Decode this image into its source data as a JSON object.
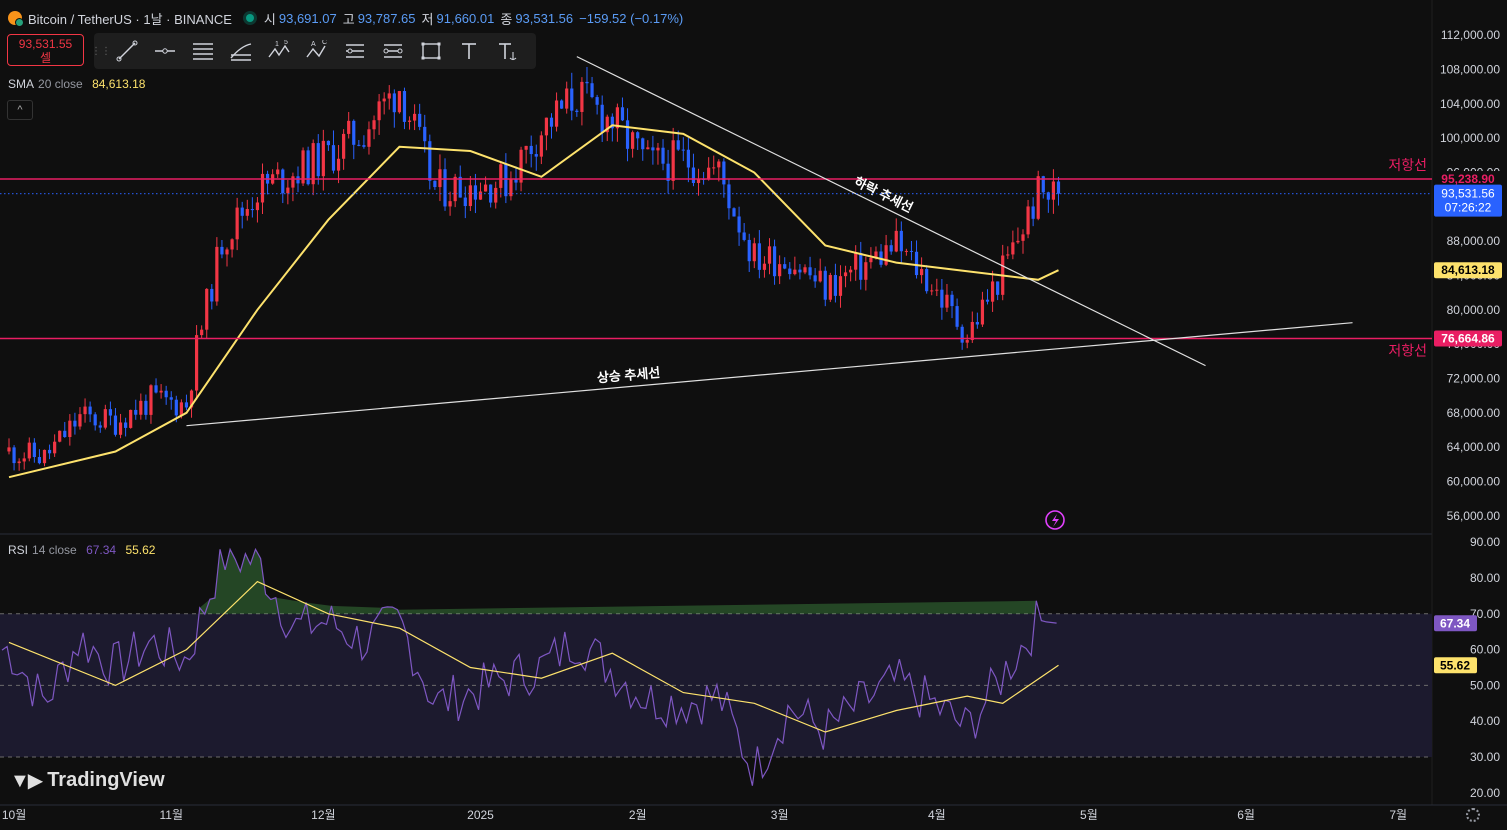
{
  "header": {
    "symbol": "Bitcoin / TetherUS · 1날 · BINANCE",
    "open_label": "시",
    "open": "93,691.07",
    "high_label": "고",
    "high": "93,787.65",
    "low_label": "저",
    "low": "91,660.01",
    "close_label": "종",
    "close": "93,531.56",
    "change": "−159.52 (−0.17%)"
  },
  "sell_box": {
    "price": "93,531.55",
    "label": "셀"
  },
  "toolbar": {
    "icons": [
      "drag-handle-icon",
      "trend-line-icon",
      "horizontal-ray-icon",
      "parallel-channel-icon",
      "fib-retracement-icon",
      "elliott-wave-icon",
      "abcd-pattern-icon",
      "date-range-icon",
      "price-range-icon",
      "rectangle-icon",
      "text-icon",
      "anchored-text-icon"
    ],
    "wave_labels": [
      "1",
      "5"
    ],
    "abcd_labels": [
      "A",
      "C"
    ]
  },
  "collapse_label": "^",
  "logo_text": "TradingView",
  "colors": {
    "up": "#f23645",
    "down": "#2962ff",
    "sma": "#fde26c",
    "rsi": "#7e57c2",
    "resistance": "#e91e63",
    "bg": "#0f0f0f",
    "last_price": "#2962ff"
  },
  "chart_data": [
    {
      "type": "candlestick",
      "x_axis_labels": [
        "10월",
        "11월",
        "12월",
        "2025",
        "2월",
        "3월",
        "4월",
        "5월",
        "6월",
        "7월"
      ],
      "y_axis_labels": [
        "112,000.00",
        "108,000.00",
        "104,000.00",
        "100,000.00",
        "96,000.00",
        "92,000.00",
        "88,000.00",
        "84,000.00",
        "80,000.00",
        "76,000.00",
        "72,000.00",
        "68,000.00",
        "64,000.00",
        "60,000.00",
        "56,000.00"
      ],
      "ylim": [
        54000,
        114000
      ],
      "indicator": {
        "name": "SMA",
        "params": "20 close",
        "value": "84,613.18"
      },
      "price_tags": {
        "resistance_upper": "95,238.90",
        "last_price": "93,531.56",
        "countdown": "07:26:22",
        "sma": "84,613.18",
        "support_lower": "76,664.86"
      },
      "horizontal_lines": [
        {
          "value": 95238.9,
          "label": "저항선"
        },
        {
          "value": 76664.86,
          "label": "저항선"
        }
      ],
      "trendlines": [
        {
          "label": "하락 추세선",
          "from": {
            "date": "2025-01-20",
            "price": 109500
          },
          "to": {
            "date": "2025-05-24",
            "price": 73500
          }
        },
        {
          "label": "상승 추세선",
          "from": {
            "date": "2024-11-04",
            "price": 66500
          },
          "to": {
            "date": "2025-06-22",
            "price": 78500
          }
        }
      ],
      "close_path": [
        {
          "date": "2024-09-30",
          "close": 63500
        },
        {
          "date": "2024-10-07",
          "close": 62800
        },
        {
          "date": "2024-10-14",
          "close": 67500
        },
        {
          "date": "2024-10-21",
          "close": 67000
        },
        {
          "date": "2024-10-28",
          "close": 69500
        },
        {
          "date": "2024-11-04",
          "close": 69000
        },
        {
          "date": "2024-11-06",
          "close": 75500
        },
        {
          "date": "2024-11-11",
          "close": 88000
        },
        {
          "date": "2024-11-18",
          "close": 94000
        },
        {
          "date": "2024-11-25",
          "close": 96000
        },
        {
          "date": "2024-12-02",
          "close": 98000
        },
        {
          "date": "2024-12-09",
          "close": 101000
        },
        {
          "date": "2024-12-16",
          "close": 106000
        },
        {
          "date": "2024-12-23",
          "close": 94000
        },
        {
          "date": "2024-12-30",
          "close": 94500
        },
        {
          "date": "2025-01-06",
          "close": 95000
        },
        {
          "date": "2025-01-13",
          "close": 101000
        },
        {
          "date": "2025-01-20",
          "close": 105000
        },
        {
          "date": "2025-01-27",
          "close": 102000
        },
        {
          "date": "2025-02-03",
          "close": 97000
        },
        {
          "date": "2025-02-10",
          "close": 97500
        },
        {
          "date": "2025-02-17",
          "close": 96000
        },
        {
          "date": "2025-02-24",
          "close": 86000
        },
        {
          "date": "2025-03-03",
          "close": 86000
        },
        {
          "date": "2025-03-10",
          "close": 82500
        },
        {
          "date": "2025-03-17",
          "close": 85000
        },
        {
          "date": "2025-03-24",
          "close": 87500
        },
        {
          "date": "2025-03-31",
          "close": 83000
        },
        {
          "date": "2025-04-07",
          "close": 77000
        },
        {
          "date": "2025-04-14",
          "close": 84500
        },
        {
          "date": "2025-04-21",
          "close": 93500
        },
        {
          "date": "2025-04-25",
          "close": 93531.56
        }
      ],
      "sma_path": [
        {
          "date": "2024-09-30",
          "value": 60500
        },
        {
          "date": "2024-10-21",
          "value": 63500
        },
        {
          "date": "2024-11-04",
          "value": 68000
        },
        {
          "date": "2024-11-18",
          "value": 80000
        },
        {
          "date": "2024-12-02",
          "value": 90500
        },
        {
          "date": "2024-12-16",
          "value": 99000
        },
        {
          "date": "2024-12-30",
          "value": 98500
        },
        {
          "date": "2025-01-13",
          "value": 95500
        },
        {
          "date": "2025-01-27",
          "value": 101500
        },
        {
          "date": "2025-02-10",
          "value": 100500
        },
        {
          "date": "2025-02-24",
          "value": 96000
        },
        {
          "date": "2025-03-10",
          "value": 87500
        },
        {
          "date": "2025-03-24",
          "value": 85500
        },
        {
          "date": "2025-04-07",
          "value": 84500
        },
        {
          "date": "2025-04-21",
          "value": 83500
        },
        {
          "date": "2025-04-25",
          "value": 84613.18
        }
      ]
    },
    {
      "type": "line",
      "indicator": {
        "name": "RSI",
        "params": "14 close",
        "value": "67.34",
        "ma_value": "55.62"
      },
      "y_axis_labels": [
        "90.00",
        "80.00",
        "70.00",
        "60.00",
        "50.00",
        "40.00",
        "30.00",
        "20.00"
      ],
      "ylim": [
        18,
        92
      ],
      "bands": {
        "upper": 70,
        "middle": 50,
        "lower": 30
      },
      "series": [
        {
          "values_path": [
            {
              "date": "2024-09-30",
              "value": 60
            },
            {
              "date": "2024-10-07",
              "value": 45
            },
            {
              "date": "2024-10-14",
              "value": 63
            },
            {
              "date": "2024-10-21",
              "value": 55
            },
            {
              "date": "2024-10-28",
              "value": 62
            },
            {
              "date": "2024-11-04",
              "value": 57
            },
            {
              "date": "2024-11-11",
              "value": 86
            },
            {
              "date": "2024-11-18",
              "value": 85
            },
            {
              "date": "2024-11-25",
              "value": 66
            },
            {
              "date": "2024-12-02",
              "value": 68
            },
            {
              "date": "2024-12-09",
              "value": 62
            },
            {
              "date": "2024-12-16",
              "value": 68
            },
            {
              "date": "2024-12-23",
              "value": 45
            },
            {
              "date": "2024-12-30",
              "value": 48
            },
            {
              "date": "2025-01-06",
              "value": 52
            },
            {
              "date": "2025-01-13",
              "value": 55
            },
            {
              "date": "2025-01-20",
              "value": 63
            },
            {
              "date": "2025-01-27",
              "value": 54
            },
            {
              "date": "2025-02-03",
              "value": 46
            },
            {
              "date": "2025-02-10",
              "value": 45
            },
            {
              "date": "2025-02-17",
              "value": 47
            },
            {
              "date": "2025-02-24",
              "value": 26
            },
            {
              "date": "2025-03-03",
              "value": 44
            },
            {
              "date": "2025-03-10",
              "value": 37
            },
            {
              "date": "2025-03-17",
              "value": 45
            },
            {
              "date": "2025-03-24",
              "value": 51
            },
            {
              "date": "2025-03-31",
              "value": 45
            },
            {
              "date": "2025-04-07",
              "value": 38
            },
            {
              "date": "2025-04-14",
              "value": 53
            },
            {
              "date": "2025-04-21",
              "value": 68
            },
            {
              "date": "2025-04-25",
              "value": 67.34
            }
          ]
        },
        {
          "values_path": [
            {
              "date": "2024-09-30",
              "value": 62
            },
            {
              "date": "2024-10-21",
              "value": 50
            },
            {
              "date": "2024-11-04",
              "value": 60
            },
            {
              "date": "2024-11-18",
              "value": 79
            },
            {
              "date": "2024-12-02",
              "value": 70
            },
            {
              "date": "2024-12-16",
              "value": 66
            },
            {
              "date": "2024-12-30",
              "value": 55
            },
            {
              "date": "2025-01-13",
              "value": 52
            },
            {
              "date": "2025-01-27",
              "value": 59
            },
            {
              "date": "2025-02-10",
              "value": 48
            },
            {
              "date": "2025-02-24",
              "value": 45
            },
            {
              "date": "2025-03-10",
              "value": 37
            },
            {
              "date": "2025-03-24",
              "value": 43
            },
            {
              "date": "2025-04-07",
              "value": 47
            },
            {
              "date": "2025-04-14",
              "value": 45
            },
            {
              "date": "2025-04-25",
              "value": 55.62
            }
          ]
        }
      ]
    }
  ]
}
